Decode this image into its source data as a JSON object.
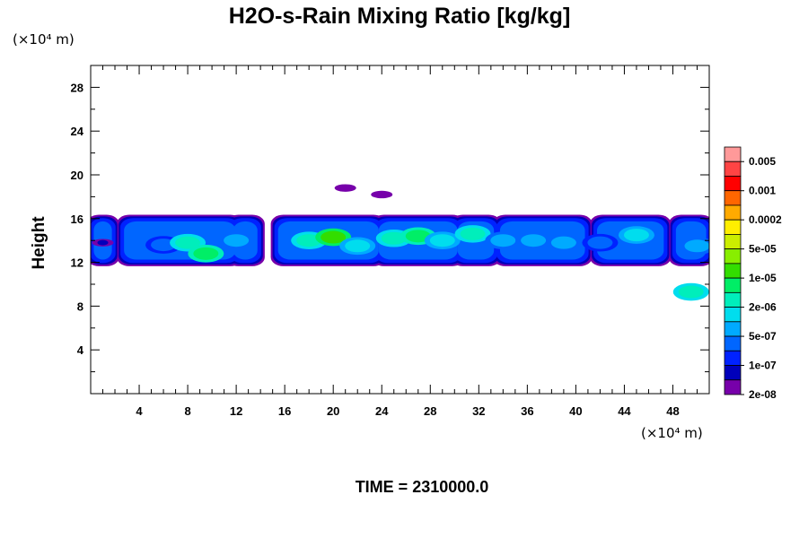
{
  "chart_data": {
    "type": "heatmap",
    "title": "H2O-s-Rain Mixing Ratio [kg/kg]",
    "ylabel": "Height",
    "x_unit_label": "(×10⁴ m)",
    "y_unit_label": "(×10⁴ m)",
    "xlim": [
      0,
      51
    ],
    "ylim": [
      0,
      30
    ],
    "x_ticks": [
      "4",
      "8",
      "12",
      "16",
      "20",
      "24",
      "28",
      "32",
      "36",
      "40",
      "44",
      "48"
    ],
    "y_ticks": [
      "4",
      "8",
      "12",
      "16",
      "20",
      "24",
      "28"
    ],
    "time_label": "TIME = 2310000.0",
    "colorbar": {
      "labels": [
        "0.005",
        "0.001",
        "0.0002",
        "5e-05",
        "1e-05",
        "2e-06",
        "5e-07",
        "1e-07",
        "2e-08"
      ],
      "colors": [
        "#ff9999",
        "#ff4444",
        "#ff0000",
        "#ff6600",
        "#ffaa00",
        "#ffee00",
        "#ccee00",
        "#88ee00",
        "#33dd00",
        "#00ee66",
        "#00eebb",
        "#00ddee",
        "#00aaff",
        "#0066ff",
        "#0022ff",
        "#0000bb",
        "#7700aa"
      ]
    },
    "cloud_band": {
      "base_height": 12,
      "top_height": 16,
      "x_range": [
        0,
        51
      ]
    },
    "cells": [
      {
        "x": 1,
        "y": 13.8,
        "level": 15
      },
      {
        "x": 6,
        "y": 13.6,
        "level": 13
      },
      {
        "x": 8,
        "y": 13.8,
        "level": 10
      },
      {
        "x": 9.5,
        "y": 12.8,
        "level": 9
      },
      {
        "x": 12,
        "y": 14.0,
        "level": 12
      },
      {
        "x": 18,
        "y": 14.0,
        "level": 10
      },
      {
        "x": 20,
        "y": 14.3,
        "level": 8
      },
      {
        "x": 22,
        "y": 13.5,
        "level": 11
      },
      {
        "x": 25,
        "y": 14.2,
        "level": 10
      },
      {
        "x": 27,
        "y": 14.4,
        "level": 9
      },
      {
        "x": 29,
        "y": 14.0,
        "level": 11
      },
      {
        "x": 31.5,
        "y": 14.6,
        "level": 10
      },
      {
        "x": 34,
        "y": 14.0,
        "level": 12
      },
      {
        "x": 36.5,
        "y": 14.0,
        "level": 12
      },
      {
        "x": 39,
        "y": 13.8,
        "level": 12
      },
      {
        "x": 42,
        "y": 13.8,
        "level": 13
      },
      {
        "x": 45,
        "y": 14.5,
        "level": 11
      },
      {
        "x": 50,
        "y": 13.5,
        "level": 12
      },
      {
        "x": 49.5,
        "y": 9.3,
        "level": 10
      },
      {
        "x": 21,
        "y": 18.8,
        "level": 16
      },
      {
        "x": 24,
        "y": 18.2,
        "level": 16
      }
    ]
  }
}
